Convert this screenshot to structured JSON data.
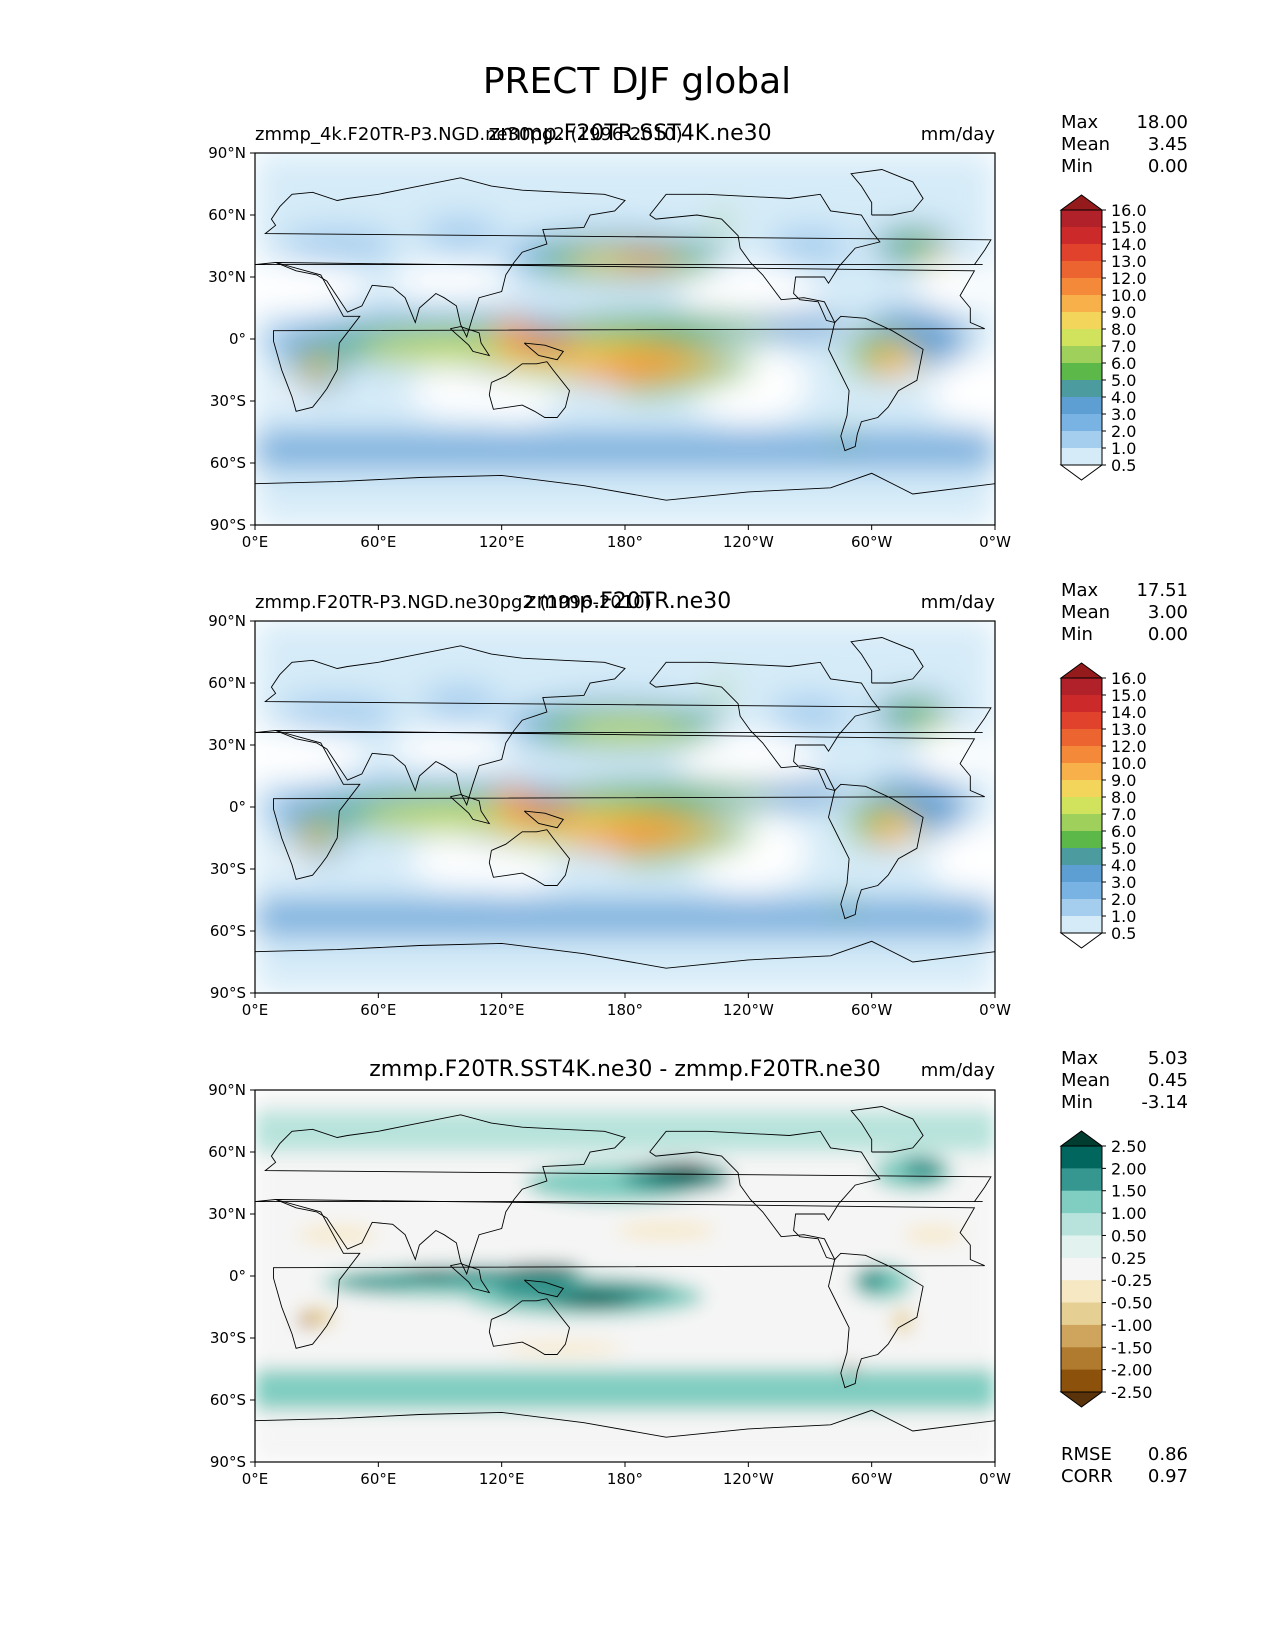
{
  "figure": {
    "title": "PRECT DJF global"
  },
  "chart_data": [
    {
      "type": "heatmap",
      "title": "zmmp.F20TR.SST4K.ne30",
      "subtitle_left": "zmmp_4k.F20TR-P3.NGD.ne30pg2 (1996-2010)",
      "units": "mm/day",
      "x_ticks": [
        "0°E",
        "60°E",
        "120°E",
        "180°",
        "120°W",
        "60°W",
        "0°W"
      ],
      "y_ticks": [
        "90°N",
        "60°N",
        "30°N",
        "0°",
        "30°S",
        "60°S",
        "90°S"
      ],
      "xlim": [
        0,
        360
      ],
      "ylim": [
        -90,
        90
      ],
      "stats": [
        {
          "label": "Max",
          "value": "18.00"
        },
        {
          "label": "Mean",
          "value": "3.45"
        },
        {
          "label": "Min",
          "value": "0.00"
        }
      ],
      "colorbar": {
        "levels": [
          "16.0",
          "15.0",
          "14.0",
          "13.0",
          "12.0",
          "10.0",
          "9.0",
          "8.0",
          "7.0",
          "6.0",
          "5.0",
          "4.0",
          "3.0",
          "2.0",
          "1.0",
          "0.5"
        ],
        "colors": [
          "#941a1c",
          "#b1212a",
          "#cc2a2a",
          "#e0422b",
          "#ec6430",
          "#f48a39",
          "#f7b04a",
          "#f3d55b",
          "#d1e35c",
          "#9fd05b",
          "#5cb849",
          "#4c9c9f",
          "#5d9fd3",
          "#79b3e3",
          "#a4cdee",
          "#d5ebf8",
          "#ffffff"
        ]
      }
    },
    {
      "type": "heatmap",
      "title": "zmmp.F20TR.ne30",
      "subtitle_left": "zmmp.F20TR-P3.NGD.ne30pg2 (1996-2010)",
      "units": "mm/day",
      "x_ticks": [
        "0°E",
        "60°E",
        "120°E",
        "180°",
        "120°W",
        "60°W",
        "0°W"
      ],
      "y_ticks": [
        "90°N",
        "60°N",
        "30°N",
        "0°",
        "30°S",
        "60°S",
        "90°S"
      ],
      "xlim": [
        0,
        360
      ],
      "ylim": [
        -90,
        90
      ],
      "stats": [
        {
          "label": "Max",
          "value": "17.51"
        },
        {
          "label": "Mean",
          "value": "3.00"
        },
        {
          "label": "Min",
          "value": "0.00"
        }
      ],
      "colorbar": {
        "levels": [
          "16.0",
          "15.0",
          "14.0",
          "13.0",
          "12.0",
          "10.0",
          "9.0",
          "8.0",
          "7.0",
          "6.0",
          "5.0",
          "4.0",
          "3.0",
          "2.0",
          "1.0",
          "0.5"
        ],
        "colors": [
          "#941a1c",
          "#b1212a",
          "#cc2a2a",
          "#e0422b",
          "#ec6430",
          "#f48a39",
          "#f7b04a",
          "#f3d55b",
          "#d1e35c",
          "#9fd05b",
          "#5cb849",
          "#4c9c9f",
          "#5d9fd3",
          "#79b3e3",
          "#a4cdee",
          "#d5ebf8",
          "#ffffff"
        ]
      }
    },
    {
      "type": "heatmap",
      "title": "zmmp.F20TR.SST4K.ne30 - zmmp.F20TR.ne30",
      "subtitle_left": "",
      "units": "mm/day",
      "x_ticks": [
        "0°E",
        "60°E",
        "120°E",
        "180°",
        "120°W",
        "60°W",
        "0°W"
      ],
      "y_ticks": [
        "90°N",
        "60°N",
        "30°N",
        "0°",
        "30°S",
        "60°S",
        "90°S"
      ],
      "xlim": [
        0,
        360
      ],
      "ylim": [
        -90,
        90
      ],
      "stats": [
        {
          "label": "Max",
          "value": "5.03"
        },
        {
          "label": "Mean",
          "value": "0.45"
        },
        {
          "label": "Min",
          "value": "-3.14"
        }
      ],
      "extra_stats": [
        {
          "label": "RMSE",
          "value": "0.86"
        },
        {
          "label": "CORR",
          "value": "0.97"
        }
      ],
      "colorbar": {
        "levels": [
          "2.50",
          "2.00",
          "1.50",
          "1.00",
          "0.50",
          "0.25",
          "-0.25",
          "-0.50",
          "-1.00",
          "-1.50",
          "-2.00",
          "-2.50"
        ],
        "colors": [
          "#003c30",
          "#01665e",
          "#35978f",
          "#80cdc1",
          "#b7e3dc",
          "#e2f2ee",
          "#f5f5f5",
          "#f6e8c3",
          "#e6cf92",
          "#cfa55e",
          "#b07a2f",
          "#8c510a",
          "#5a330a"
        ]
      }
    }
  ]
}
